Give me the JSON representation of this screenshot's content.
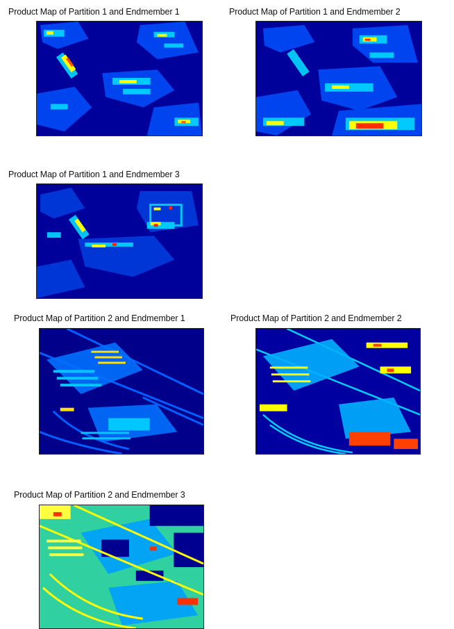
{
  "colormap": {
    "name": "jet",
    "low": "#00008f",
    "mid_low": "#0060ff",
    "mid": "#00e0ff",
    "mid_high": "#ffff00",
    "high": "#ff0000"
  },
  "panels": [
    {
      "title": "Product Map of Partition 1 and Endmember 1"
    },
    {
      "title": "Product Map of Partition 1 and Endmember 2"
    },
    {
      "title": "Product Map of Partition 1 and Endmember 3"
    },
    {
      "title": "Product Map of Partition 2 and Endmember 1"
    },
    {
      "title": "Product Map of Partition 2 and Endmember 2"
    },
    {
      "title": "Product Map of Partition 2 and Endmember 3"
    }
  ]
}
